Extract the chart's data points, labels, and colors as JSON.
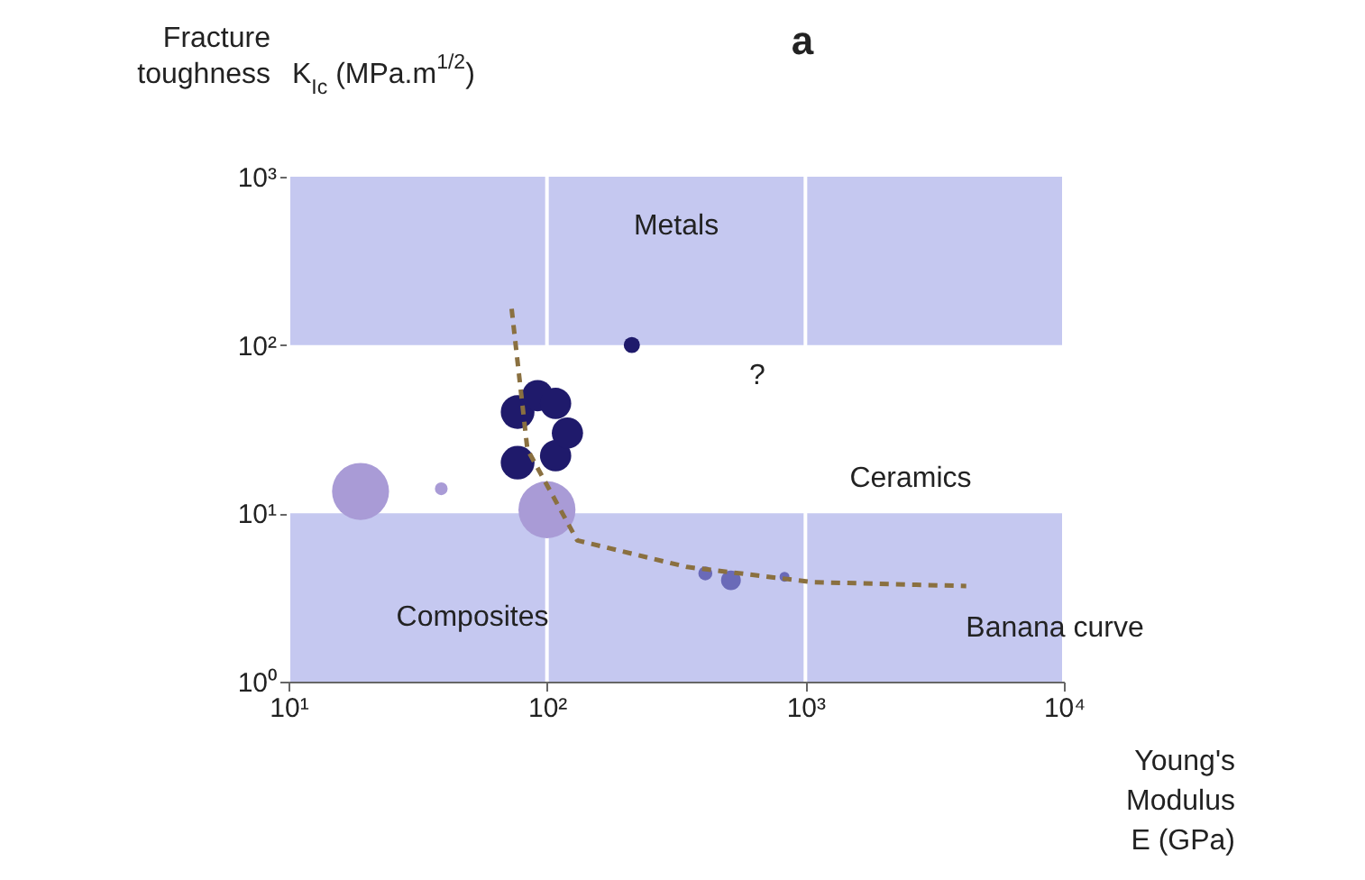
{
  "chart_data": {
    "type": "bubble",
    "title": "a",
    "xlabel": "Young's Modulus E (GPa)",
    "ylabel": "Fracture toughness K$_{Ic}$ (MPa.m$^{1/2}$)",
    "log": "xy",
    "grid": "x",
    "xlim": [
      10,
      10000
    ],
    "ylim": [
      1,
      1000
    ],
    "xticks": [
      {
        "value": 10,
        "label": "10¹"
      },
      {
        "value": 100,
        "label": "10²"
      },
      {
        "value": 1000,
        "label": "10³"
      },
      {
        "value": 10000,
        "label": "10⁴"
      }
    ],
    "yticks": [
      {
        "value": 1,
        "label": "10⁰"
      },
      {
        "value": 10,
        "label": "10¹"
      },
      {
        "value": 100,
        "label": "10²"
      },
      {
        "value": 1000,
        "label": "10³"
      }
    ],
    "bands": [
      {
        "axis": "y",
        "from": 1,
        "to": 10,
        "color": "#c5c8f0"
      },
      {
        "axis": "y",
        "from": 100,
        "to": 1000,
        "color": "#c5c8f0"
      }
    ],
    "series": [
      {
        "color": "#a99bd6",
        "x": [
          19,
          39,
          100
        ],
        "values": [
          13.5,
          14,
          10.5
        ],
        "sizes": [
          1,
          0.05,
          1
        ]
      },
      {
        "color": "#1f1a6b",
        "x": [
          77,
          77,
          92,
          108,
          108,
          120,
          213
        ],
        "values": [
          40,
          20,
          50,
          45,
          22,
          30,
          100
        ],
        "sizes": [
          0.35,
          0.35,
          0.3,
          0.3,
          0.3,
          0.3,
          0.08
        ]
      },
      {
        "color": "#6a6ab8",
        "x": [
          410,
          515,
          830
        ],
        "values": [
          4.4,
          4.0,
          4.2
        ],
        "sizes": [
          0.06,
          0.12,
          0.03
        ]
      },
      {
        "type": "line",
        "color": "#8a7040",
        "line_style": "dashed",
        "x": [
          73,
          84,
          131,
          348,
          1070,
          4190
        ],
        "values": [
          164,
          24,
          6.9,
          4.8,
          3.9,
          3.7
        ]
      }
    ],
    "annotations": [
      "Metals",
      "Ceramics",
      "Composites",
      "Banana curve",
      "?"
    ]
  }
}
